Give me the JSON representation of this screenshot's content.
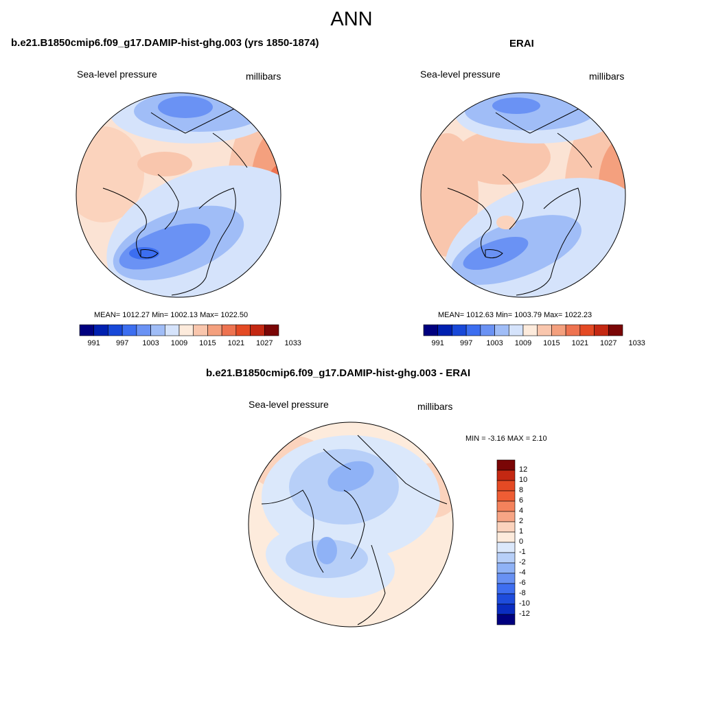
{
  "page_title": "ANN",
  "panels": [
    {
      "title": "b.e21.B1850cmip6.f09_g17.DAMIP-hist-ghg.003 (yrs 1850-1874)",
      "left_label": "Sea-level pressure",
      "right_label": "millibars",
      "stats": "MEAN= 1012.27  Min= 1002.13  Max= 1022.50"
    },
    {
      "title": "ERAI",
      "left_label": "Sea-level pressure",
      "right_label": "millibars",
      "stats": "MEAN= 1012.63  Min= 1003.79  Max= 1022.23"
    },
    {
      "title": "b.e21.B1850cmip6.f09_g17.DAMIP-hist-ghg.003 - ERAI",
      "left_label": "Sea-level pressure",
      "right_label": "millibars",
      "stats": "MIN =  -3.16 MAX =   2.10"
    }
  ],
  "colorbar_abs": {
    "colors": [
      "#00007f",
      "#0020b0",
      "#1848d8",
      "#3c6ef0",
      "#6a92f4",
      "#a0bdf7",
      "#d5e3fb",
      "#fdebdc",
      "#f9c6ad",
      "#f4a07e",
      "#ee7350",
      "#e44a24",
      "#c42812",
      "#7a0606"
    ],
    "tick_labels": [
      "991",
      "997",
      "1003",
      "1009",
      "1015",
      "1021",
      "1027",
      "1033"
    ]
  },
  "colorbar_diff": {
    "colors": [
      "#7a0606",
      "#c42812",
      "#e44a24",
      "#ee5d34",
      "#f4825c",
      "#f7a585",
      "#fbd3bd",
      "#fdebdc",
      "#dbe8fb",
      "#b7cff8",
      "#8fb2f6",
      "#6891f3",
      "#3e6ef0",
      "#1e4cdc",
      "#0a2cc0",
      "#00007f"
    ],
    "tick_labels": [
      "12",
      "10",
      "8",
      "6",
      "4",
      "2",
      "1",
      "0",
      "-1",
      "-2",
      "-4",
      "-6",
      "-8",
      "-10",
      "-12"
    ]
  },
  "colors": {
    "outline": "#000000",
    "coast": "#000000"
  }
}
